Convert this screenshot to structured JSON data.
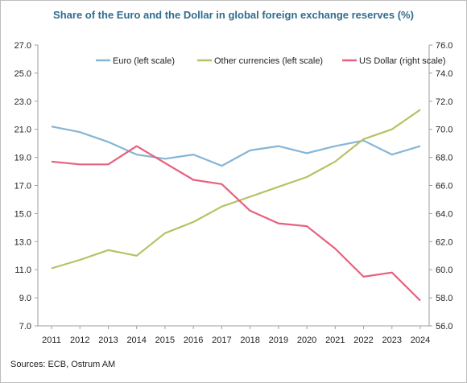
{
  "source_note": "Sources: ECB, Ostrum AM",
  "chart_data": {
    "type": "line",
    "title": "Share of the Euro and the Dollar in global foreign exchange reserves (%)",
    "categories": [
      "2011",
      "2012",
      "2013",
      "2014",
      "2015",
      "2016",
      "2017",
      "2018",
      "2019",
      "2020",
      "2021",
      "2022",
      "2023",
      "2024"
    ],
    "left_axis": {
      "ylim": [
        7.0,
        27.0
      ],
      "ticks": [
        "7.0",
        "9.0",
        "11.0",
        "13.0",
        "15.0",
        "17.0",
        "19.0",
        "21.0",
        "23.0",
        "25.0",
        "27.0"
      ]
    },
    "right_axis": {
      "ylim": [
        56.0,
        76.0
      ],
      "ticks": [
        "56.0",
        "58.0",
        "60.0",
        "62.0",
        "64.0",
        "66.0",
        "68.0",
        "70.0",
        "72.0",
        "74.0",
        "76.0"
      ]
    },
    "series": [
      {
        "name": "Euro (left scale)",
        "axis": "left",
        "color": "#86b5d6",
        "values": [
          21.2,
          20.8,
          20.1,
          19.2,
          18.9,
          19.2,
          18.4,
          19.5,
          19.8,
          19.3,
          19.8,
          20.2,
          19.2,
          19.8
        ]
      },
      {
        "name": "Other currencies (left scale)",
        "axis": "left",
        "color": "#b6c263",
        "values": [
          11.1,
          11.7,
          12.4,
          12.0,
          13.6,
          14.4,
          15.5,
          16.2,
          16.9,
          17.6,
          18.7,
          20.3,
          21.0,
          22.4
        ]
      },
      {
        "name": "US Dollar (right scale)",
        "axis": "right",
        "color": "#e8607d",
        "values": [
          67.7,
          67.5,
          67.5,
          68.8,
          67.6,
          66.4,
          66.1,
          64.2,
          63.3,
          63.1,
          61.5,
          59.5,
          59.8,
          57.8
        ]
      }
    ],
    "legend_position": "top",
    "grid": false
  }
}
